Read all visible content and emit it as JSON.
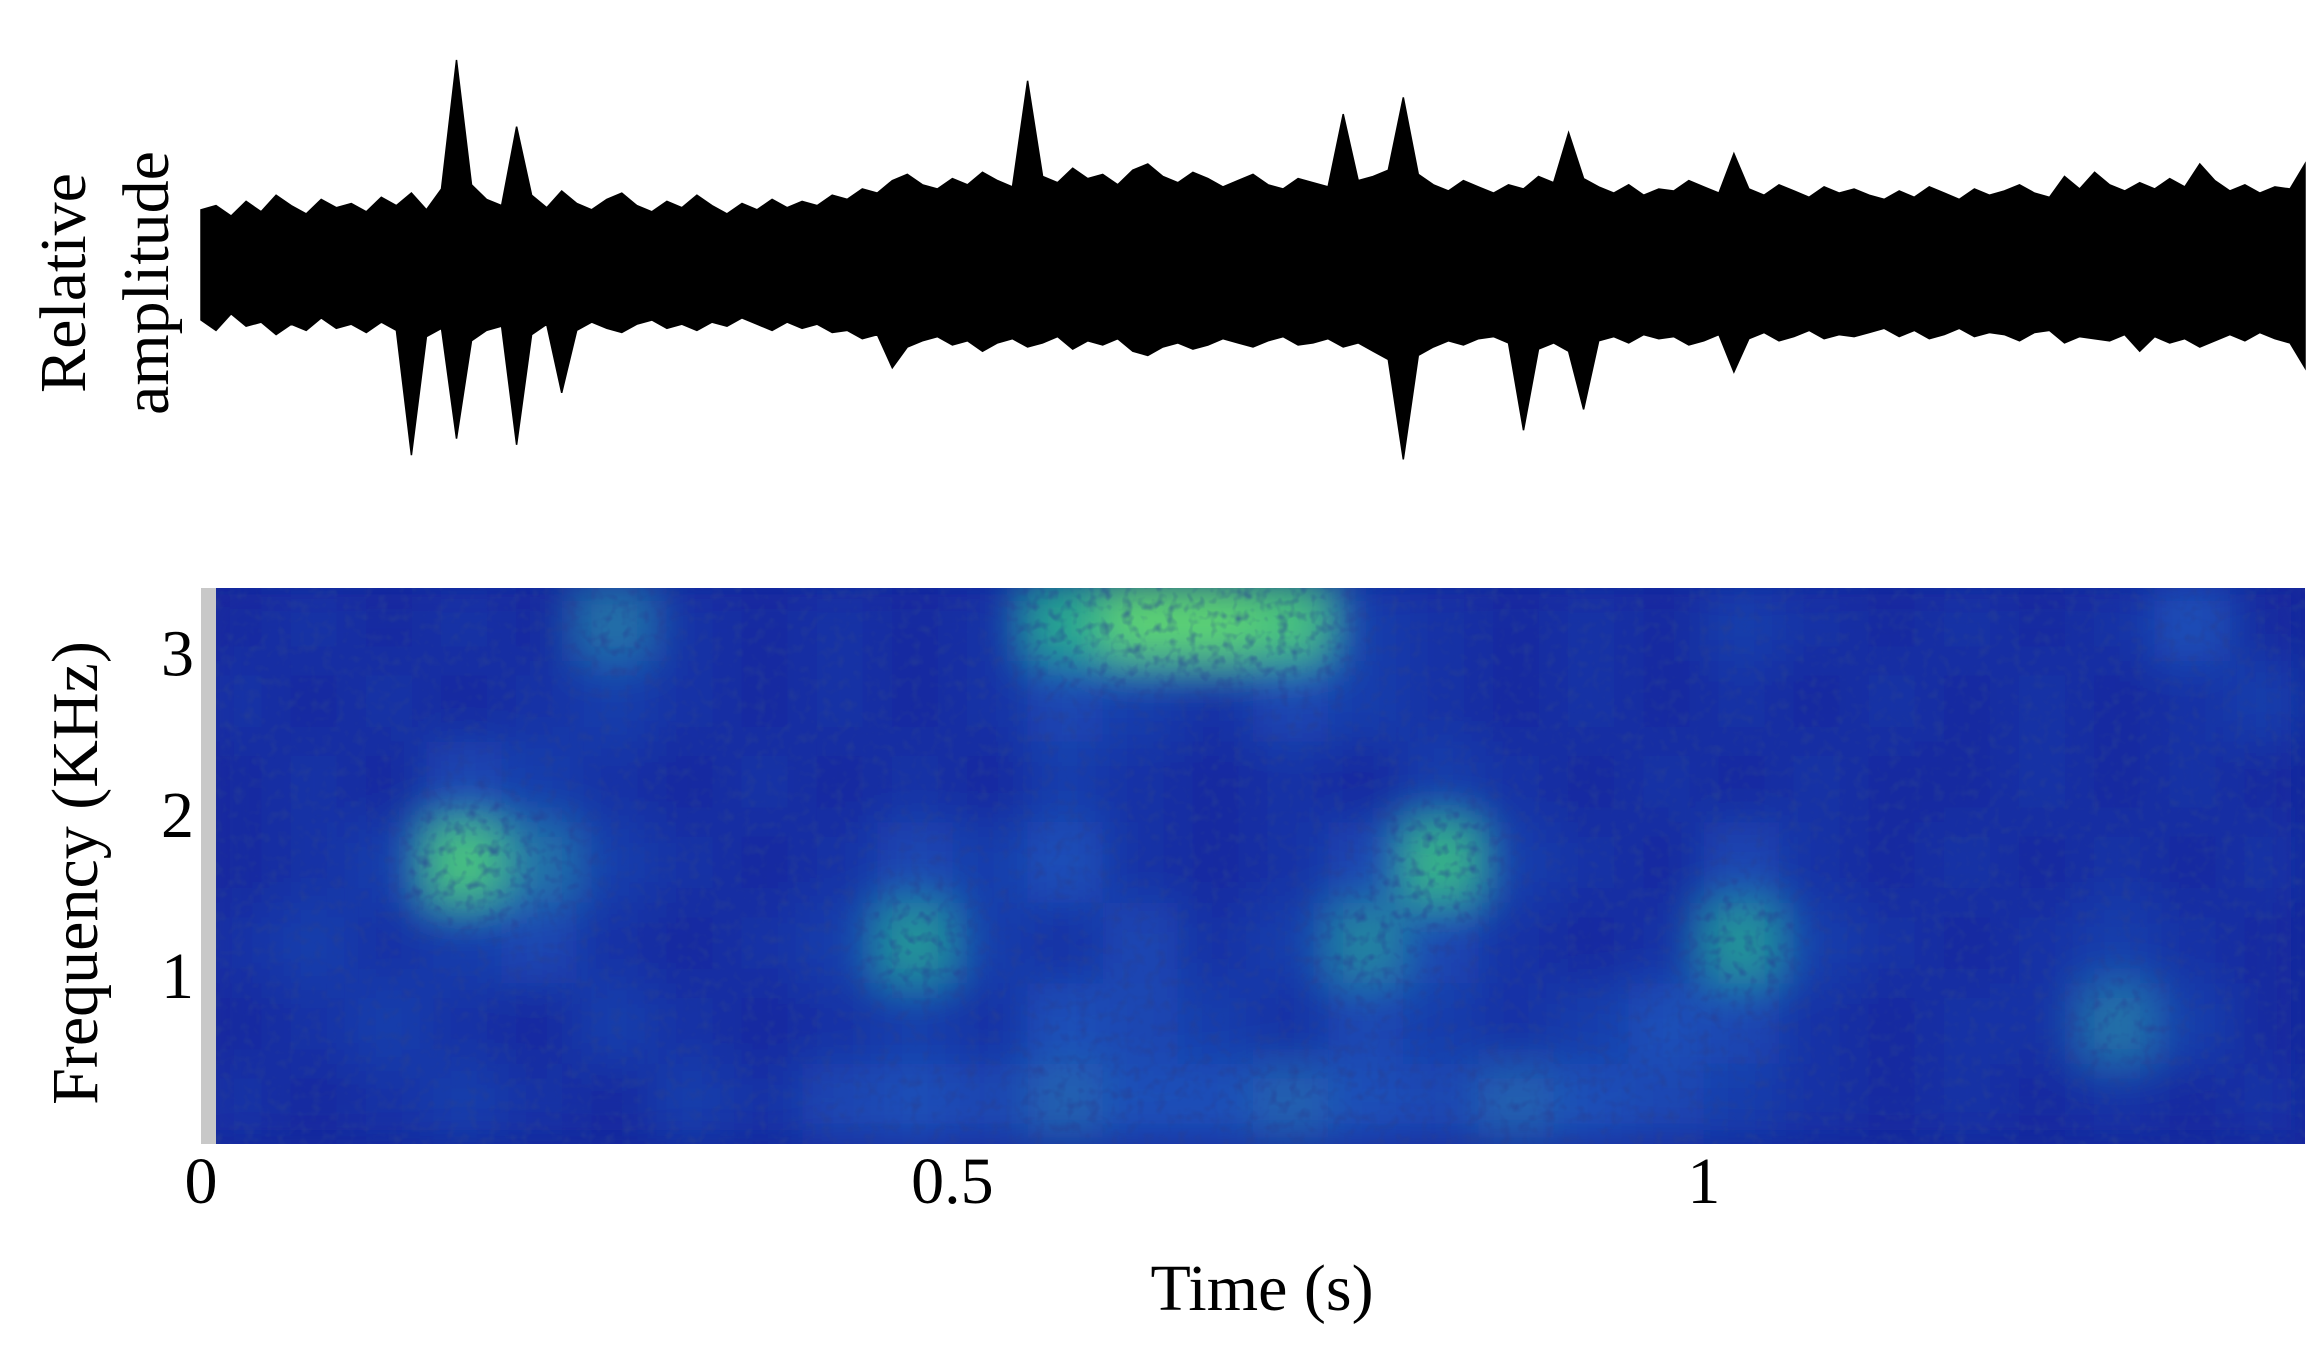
{
  "chart_data": [
    {
      "type": "area",
      "ylabel_lines": [
        "Relative",
        "amplitude"
      ],
      "color": "#000000",
      "xlim": [
        0,
        1.4
      ],
      "ylim": [
        -1,
        1
      ],
      "x": [
        0,
        0.01,
        0.02,
        0.03,
        0.04,
        0.05,
        0.06,
        0.07,
        0.08,
        0.09,
        0.1,
        0.11,
        0.12,
        0.13,
        0.14,
        0.15,
        0.16,
        0.17,
        0.18,
        0.19,
        0.2,
        0.21,
        0.22,
        0.23,
        0.24,
        0.25,
        0.26,
        0.27,
        0.28,
        0.29,
        0.3,
        0.31,
        0.32,
        0.33,
        0.34,
        0.35,
        0.36,
        0.37,
        0.38,
        0.39,
        0.4,
        0.41,
        0.42,
        0.43,
        0.44,
        0.45,
        0.46,
        0.47,
        0.48,
        0.49,
        0.5,
        0.51,
        0.52,
        0.53,
        0.54,
        0.55,
        0.56,
        0.57,
        0.58,
        0.59,
        0.6,
        0.61,
        0.62,
        0.63,
        0.64,
        0.65,
        0.66,
        0.67,
        0.68,
        0.69,
        0.7,
        0.71,
        0.72,
        0.73,
        0.74,
        0.75,
        0.76,
        0.77,
        0.78,
        0.79,
        0.8,
        0.81,
        0.82,
        0.83,
        0.84,
        0.85,
        0.86,
        0.87,
        0.88,
        0.89,
        0.9,
        0.91,
        0.92,
        0.93,
        0.94,
        0.95,
        0.96,
        0.97,
        0.98,
        0.99,
        1,
        1.01,
        1.02,
        1.03,
        1.04,
        1.05,
        1.06,
        1.07,
        1.08,
        1.09,
        1.1,
        1.11,
        1.12,
        1.13,
        1.14,
        1.15,
        1.16,
        1.17,
        1.18,
        1.19,
        1.2,
        1.21,
        1.22,
        1.23,
        1.24,
        1.25,
        1.26,
        1.27,
        1.28,
        1.29,
        1.3,
        1.31,
        1.32,
        1.33,
        1.34,
        1.35,
        1.36,
        1.37,
        1.38,
        1.39,
        1.4
      ],
      "upper": [
        0.28,
        0.3,
        0.25,
        0.32,
        0.27,
        0.35,
        0.3,
        0.26,
        0.33,
        0.29,
        0.31,
        0.27,
        0.34,
        0.3,
        0.36,
        0.28,
        0.38,
        1.0,
        0.4,
        0.33,
        0.3,
        0.68,
        0.35,
        0.29,
        0.37,
        0.31,
        0.28,
        0.33,
        0.36,
        0.3,
        0.27,
        0.32,
        0.29,
        0.35,
        0.3,
        0.26,
        0.31,
        0.28,
        0.33,
        0.29,
        0.32,
        0.3,
        0.35,
        0.33,
        0.38,
        0.36,
        0.42,
        0.45,
        0.4,
        0.38,
        0.43,
        0.4,
        0.46,
        0.42,
        0.39,
        0.9,
        0.44,
        0.41,
        0.48,
        0.43,
        0.45,
        0.4,
        0.47,
        0.5,
        0.44,
        0.41,
        0.46,
        0.43,
        0.39,
        0.42,
        0.45,
        0.4,
        0.38,
        0.43,
        0.41,
        0.39,
        0.74,
        0.42,
        0.44,
        0.47,
        0.82,
        0.45,
        0.4,
        0.37,
        0.42,
        0.39,
        0.36,
        0.4,
        0.38,
        0.44,
        0.41,
        0.65,
        0.43,
        0.39,
        0.36,
        0.4,
        0.35,
        0.38,
        0.37,
        0.42,
        0.39,
        0.36,
        0.55,
        0.38,
        0.35,
        0.4,
        0.37,
        0.34,
        0.39,
        0.36,
        0.38,
        0.35,
        0.33,
        0.37,
        0.34,
        0.39,
        0.36,
        0.33,
        0.38,
        0.35,
        0.37,
        0.4,
        0.36,
        0.34,
        0.44,
        0.38,
        0.46,
        0.4,
        0.37,
        0.41,
        0.38,
        0.43,
        0.39,
        0.5,
        0.42,
        0.37,
        0.4,
        0.36,
        0.39,
        0.38,
        0.5
      ],
      "lower": [
        -0.25,
        -0.3,
        -0.22,
        -0.28,
        -0.26,
        -0.32,
        -0.27,
        -0.3,
        -0.24,
        -0.29,
        -0.27,
        -0.31,
        -0.26,
        -0.3,
        -0.9,
        -0.33,
        -0.29,
        -0.82,
        -0.35,
        -0.3,
        -0.28,
        -0.85,
        -0.32,
        -0.27,
        -0.6,
        -0.3,
        -0.26,
        -0.29,
        -0.31,
        -0.27,
        -0.25,
        -0.29,
        -0.27,
        -0.3,
        -0.26,
        -0.28,
        -0.24,
        -0.27,
        -0.3,
        -0.26,
        -0.29,
        -0.27,
        -0.31,
        -0.3,
        -0.34,
        -0.32,
        -0.48,
        -0.38,
        -0.35,
        -0.33,
        -0.37,
        -0.35,
        -0.4,
        -0.36,
        -0.34,
        -0.38,
        -0.36,
        -0.33,
        -0.39,
        -0.35,
        -0.37,
        -0.34,
        -0.4,
        -0.42,
        -0.38,
        -0.36,
        -0.39,
        -0.37,
        -0.34,
        -0.36,
        -0.38,
        -0.35,
        -0.33,
        -0.37,
        -0.36,
        -0.34,
        -0.38,
        -0.36,
        -0.4,
        -0.44,
        -0.92,
        -0.42,
        -0.38,
        -0.35,
        -0.37,
        -0.34,
        -0.33,
        -0.36,
        -0.78,
        -0.39,
        -0.36,
        -0.4,
        -0.68,
        -0.35,
        -0.33,
        -0.36,
        -0.32,
        -0.34,
        -0.33,
        -0.37,
        -0.35,
        -0.32,
        -0.5,
        -0.34,
        -0.31,
        -0.35,
        -0.33,
        -0.3,
        -0.34,
        -0.32,
        -0.33,
        -0.31,
        -0.29,
        -0.33,
        -0.3,
        -0.34,
        -0.32,
        -0.29,
        -0.33,
        -0.31,
        -0.32,
        -0.35,
        -0.31,
        -0.3,
        -0.36,
        -0.33,
        -0.34,
        -0.35,
        -0.32,
        -0.4,
        -0.33,
        -0.36,
        -0.34,
        -0.38,
        -0.35,
        -0.32,
        -0.35,
        -0.31,
        -0.34,
        -0.36,
        -0.48
      ]
    },
    {
      "type": "heatmap",
      "xlabel": "Time (s)",
      "ylabel": "Frequency (KHz)",
      "xlim": [
        0,
        1.4
      ],
      "ylim": [
        0,
        3.45
      ],
      "xticks": [
        0,
        0.5,
        1
      ],
      "yticks": [
        1,
        2,
        3
      ],
      "colormap": [
        "#000a60",
        "#10209a",
        "#1e50b8",
        "#26a890",
        "#7ef060"
      ],
      "zlim": [
        0,
        1
      ],
      "xbins": [
        0,
        0.05,
        0.1,
        0.15,
        0.2,
        0.25,
        0.3,
        0.35,
        0.4,
        0.45,
        0.5,
        0.55,
        0.6,
        0.65,
        0.7,
        0.75,
        0.8,
        0.85,
        0.9,
        0.95,
        1,
        1.05,
        1.1,
        1.15,
        1.2,
        1.25,
        1.3,
        1.35,
        1.4
      ],
      "ybins": [
        0,
        0.5,
        1,
        1.5,
        2,
        2.5,
        3,
        3.5
      ],
      "z": [
        [
          0.35,
          0.3,
          0.35,
          0.4,
          0.35,
          0.3,
          0.4,
          0.35,
          0.45,
          0.5,
          0.45,
          0.55,
          0.5,
          0.5,
          0.55,
          0.5,
          0.45,
          0.55,
          0.5,
          0.45,
          0.4,
          0.35,
          0.3,
          0.35,
          0.3,
          0.35,
          0.3,
          0.35
        ],
        [
          0.3,
          0.35,
          0.4,
          0.35,
          0.3,
          0.4,
          0.35,
          0.3,
          0.35,
          0.4,
          0.35,
          0.5,
          0.45,
          0.4,
          0.35,
          0.45,
          0.4,
          0.35,
          0.4,
          0.5,
          0.45,
          0.35,
          0.3,
          0.35,
          0.35,
          0.6,
          0.4,
          0.3
        ],
        [
          0.35,
          0.4,
          0.35,
          0.4,
          0.45,
          0.35,
          0.3,
          0.35,
          0.4,
          0.7,
          0.4,
          0.35,
          0.45,
          0.35,
          0.4,
          0.65,
          0.45,
          0.35,
          0.3,
          0.35,
          0.7,
          0.4,
          0.35,
          0.3,
          0.35,
          0.4,
          0.35,
          0.3
        ],
        [
          0.3,
          0.35,
          0.4,
          0.85,
          0.6,
          0.4,
          0.35,
          0.3,
          0.35,
          0.45,
          0.4,
          0.5,
          0.35,
          0.3,
          0.35,
          0.45,
          0.8,
          0.4,
          0.35,
          0.3,
          0.45,
          0.35,
          0.3,
          0.35,
          0.3,
          0.35,
          0.3,
          0.35
        ],
        [
          0.3,
          0.35,
          0.3,
          0.45,
          0.4,
          0.35,
          0.3,
          0.35,
          0.3,
          0.35,
          0.3,
          0.4,
          0.35,
          0.3,
          0.35,
          0.3,
          0.4,
          0.35,
          0.3,
          0.35,
          0.3,
          0.35,
          0.3,
          0.3,
          0.35,
          0.3,
          0.35,
          0.3
        ],
        [
          0.35,
          0.3,
          0.35,
          0.3,
          0.35,
          0.4,
          0.35,
          0.3,
          0.35,
          0.3,
          0.35,
          0.45,
          0.4,
          0.35,
          0.45,
          0.4,
          0.35,
          0.3,
          0.35,
          0.3,
          0.35,
          0.3,
          0.35,
          0.3,
          0.35,
          0.3,
          0.35,
          0.4
        ],
        [
          0.3,
          0.35,
          0.3,
          0.35,
          0.3,
          0.6,
          0.35,
          0.3,
          0.35,
          0.3,
          0.35,
          0.75,
          0.9,
          0.9,
          0.85,
          0.4,
          0.35,
          0.3,
          0.35,
          0.3,
          0.4,
          0.35,
          0.3,
          0.35,
          0.3,
          0.35,
          0.5,
          0.3
        ]
      ]
    }
  ]
}
